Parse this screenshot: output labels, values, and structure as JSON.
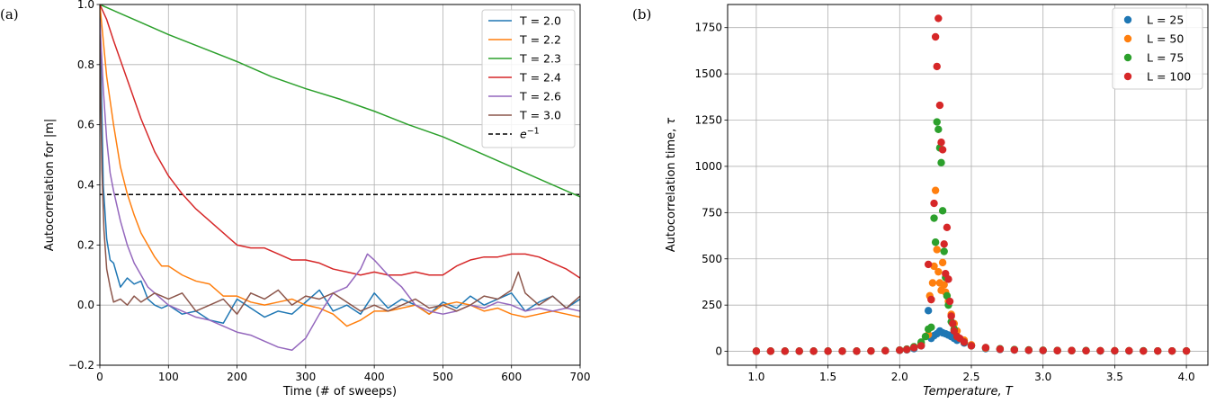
{
  "panels": {
    "a": "(a)",
    "b": "(b)"
  },
  "chart_data": [
    {
      "type": "line",
      "xlabel": "Time (# of sweeps)",
      "ylabel": "Autocorrelation for |m|",
      "xlim": [
        0,
        700
      ],
      "ylim": [
        -0.2,
        1.0
      ],
      "xticks": [
        "0",
        "100",
        "200",
        "300",
        "400",
        "500",
        "600",
        "700"
      ],
      "yticks": [
        "−0.2",
        "0.0",
        "0.2",
        "0.4",
        "0.6",
        "0.8",
        "1.0"
      ],
      "grid": true,
      "legend": "top-right",
      "reference_line": {
        "name_base": "e",
        "name_exp": "−1",
        "y": 0.368,
        "color": "#000000",
        "style": "dashed"
      },
      "series": [
        {
          "name": "T = 2.0",
          "color": "#1f77b4",
          "x": [
            0,
            5,
            10,
            15,
            20,
            30,
            40,
            50,
            60,
            70,
            80,
            90,
            100,
            120,
            140,
            160,
            180,
            200,
            220,
            240,
            260,
            280,
            300,
            320,
            340,
            360,
            380,
            400,
            420,
            440,
            460,
            480,
            500,
            520,
            540,
            560,
            580,
            600,
            620,
            640,
            660,
            680,
            700
          ],
          "y": [
            1.0,
            0.4,
            0.22,
            0.15,
            0.14,
            0.06,
            0.09,
            0.07,
            0.08,
            0.02,
            0.0,
            -0.01,
            0.0,
            -0.03,
            -0.02,
            -0.05,
            -0.06,
            0.02,
            -0.01,
            -0.04,
            -0.02,
            -0.03,
            0.01,
            0.05,
            -0.02,
            0.0,
            -0.03,
            0.04,
            -0.01,
            0.02,
            0.0,
            -0.03,
            0.01,
            -0.01,
            0.03,
            0.0,
            0.02,
            0.04,
            -0.02,
            0.01,
            0.03,
            -0.01,
            0.02
          ]
        },
        {
          "name": "T = 2.2",
          "color": "#ff7f0e",
          "x": [
            0,
            10,
            20,
            30,
            40,
            50,
            60,
            70,
            80,
            90,
            100,
            120,
            140,
            160,
            180,
            200,
            220,
            240,
            260,
            280,
            300,
            320,
            340,
            360,
            380,
            400,
            420,
            440,
            460,
            480,
            500,
            520,
            540,
            560,
            580,
            600,
            620,
            640,
            660,
            680,
            700
          ],
          "y": [
            1.0,
            0.76,
            0.6,
            0.46,
            0.37,
            0.3,
            0.24,
            0.2,
            0.16,
            0.13,
            0.13,
            0.1,
            0.08,
            0.07,
            0.03,
            0.03,
            0.01,
            0.0,
            0.01,
            0.02,
            0.0,
            -0.01,
            -0.03,
            -0.07,
            -0.05,
            -0.02,
            -0.02,
            -0.01,
            0.0,
            -0.03,
            0.0,
            0.01,
            0.0,
            -0.02,
            -0.01,
            -0.03,
            -0.04,
            -0.03,
            -0.02,
            -0.03,
            -0.04
          ]
        },
        {
          "name": "T = 2.3",
          "color": "#2ca02c",
          "x": [
            0,
            50,
            100,
            150,
            200,
            250,
            300,
            350,
            400,
            450,
            500,
            550,
            600,
            650,
            700
          ],
          "y": [
            1.0,
            0.95,
            0.9,
            0.855,
            0.81,
            0.76,
            0.72,
            0.685,
            0.645,
            0.6,
            0.56,
            0.51,
            0.46,
            0.41,
            0.36
          ]
        },
        {
          "name": "T = 2.4",
          "color": "#d62728",
          "x": [
            0,
            10,
            20,
            40,
            60,
            80,
            100,
            120,
            140,
            160,
            180,
            200,
            220,
            240,
            260,
            280,
            300,
            320,
            340,
            360,
            380,
            400,
            420,
            440,
            460,
            480,
            500,
            520,
            540,
            560,
            580,
            600,
            620,
            640,
            660,
            680,
            700
          ],
          "y": [
            1.0,
            0.95,
            0.88,
            0.75,
            0.62,
            0.51,
            0.43,
            0.37,
            0.32,
            0.28,
            0.24,
            0.2,
            0.19,
            0.19,
            0.17,
            0.15,
            0.15,
            0.14,
            0.12,
            0.11,
            0.1,
            0.11,
            0.1,
            0.1,
            0.11,
            0.1,
            0.1,
            0.13,
            0.15,
            0.16,
            0.16,
            0.17,
            0.17,
            0.16,
            0.14,
            0.12,
            0.09
          ]
        },
        {
          "name": "T = 2.6",
          "color": "#9467bd",
          "x": [
            0,
            5,
            10,
            15,
            20,
            30,
            40,
            50,
            60,
            70,
            80,
            90,
            100,
            120,
            140,
            160,
            180,
            200,
            220,
            240,
            260,
            280,
            300,
            320,
            340,
            360,
            380,
            390,
            400,
            420,
            440,
            460,
            480,
            500,
            520,
            540,
            560,
            580,
            600,
            620,
            640,
            660,
            680,
            700
          ],
          "y": [
            0.95,
            0.72,
            0.55,
            0.44,
            0.38,
            0.28,
            0.2,
            0.14,
            0.1,
            0.06,
            0.04,
            0.02,
            0.0,
            -0.02,
            -0.04,
            -0.05,
            -0.07,
            -0.09,
            -0.1,
            -0.12,
            -0.14,
            -0.15,
            -0.11,
            -0.03,
            0.04,
            0.06,
            0.12,
            0.17,
            0.15,
            0.1,
            0.06,
            0.0,
            -0.02,
            -0.03,
            -0.02,
            0.0,
            -0.01,
            0.01,
            0.0,
            -0.02,
            -0.01,
            -0.02,
            -0.01,
            -0.02
          ]
        },
        {
          "name": "T = 3.0",
          "color": "#8c564b",
          "x": [
            0,
            3,
            6,
            10,
            15,
            20,
            30,
            40,
            50,
            60,
            80,
            100,
            120,
            140,
            160,
            180,
            200,
            220,
            240,
            260,
            280,
            300,
            320,
            340,
            360,
            380,
            400,
            420,
            440,
            460,
            480,
            500,
            520,
            540,
            560,
            580,
            600,
            610,
            620,
            640,
            660,
            680,
            700
          ],
          "y": [
            0.9,
            0.45,
            0.25,
            0.12,
            0.06,
            0.01,
            0.02,
            0.0,
            0.03,
            0.01,
            0.04,
            0.02,
            0.04,
            -0.02,
            0.0,
            0.02,
            -0.03,
            0.04,
            0.02,
            0.05,
            0.0,
            0.03,
            0.02,
            0.04,
            0.01,
            -0.02,
            0.0,
            -0.02,
            0.0,
            0.02,
            -0.01,
            0.0,
            -0.02,
            0.0,
            0.03,
            0.02,
            0.05,
            0.11,
            0.04,
            0.0,
            0.03,
            -0.01,
            0.03
          ]
        }
      ]
    },
    {
      "type": "scatter",
      "xlabel_base": "Temperature",
      "xlabel_var": "T",
      "ylabel_base": "Autocorrelation time,",
      "ylabel_var": "τ",
      "xlim": [
        0.8,
        4.15
      ],
      "ylim": [
        -75,
        1875
      ],
      "xticks": [
        "1.0",
        "1.5",
        "2.0",
        "2.5",
        "3.0",
        "3.5",
        "4.0"
      ],
      "yticks": [
        "0",
        "250",
        "500",
        "750",
        "1000",
        "1250",
        "1500",
        "1750"
      ],
      "grid": true,
      "legend": "top-right",
      "series": [
        {
          "name": "L = 25",
          "color": "#1f77b4",
          "x": [
            1.0,
            1.1,
            1.2,
            1.3,
            1.4,
            1.5,
            1.6,
            1.7,
            1.8,
            1.9,
            2.0,
            2.05,
            2.1,
            2.15,
            2.2,
            2.22,
            2.24,
            2.26,
            2.28,
            2.3,
            2.32,
            2.34,
            2.36,
            2.38,
            2.4,
            2.45,
            2.5,
            2.6,
            2.7,
            2.8,
            2.9,
            3.0,
            3.1,
            3.2,
            3.3,
            3.4,
            3.5,
            3.6,
            3.7,
            3.8,
            3.9,
            4.0
          ],
          "y": [
            1,
            1,
            1,
            1,
            1,
            1,
            1,
            1,
            2,
            3,
            5,
            8,
            15,
            30,
            220,
            70,
            85,
            95,
            110,
            100,
            95,
            88,
            80,
            70,
            60,
            45,
            30,
            15,
            10,
            7,
            5,
            4,
            3,
            3,
            3,
            2,
            2,
            2,
            2,
            2,
            2,
            2
          ]
        },
        {
          "name": "L = 50",
          "color": "#ff7f0e",
          "x": [
            1.0,
            1.1,
            1.2,
            1.3,
            1.4,
            1.5,
            1.6,
            1.7,
            1.8,
            1.9,
            2.0,
            2.05,
            2.1,
            2.15,
            2.2,
            2.21,
            2.22,
            2.23,
            2.24,
            2.25,
            2.26,
            2.27,
            2.28,
            2.29,
            2.3,
            2.31,
            2.32,
            2.33,
            2.34,
            2.36,
            2.38,
            2.4,
            2.45,
            2.5,
            2.6,
            2.7,
            2.8,
            2.9,
            3.0,
            3.1,
            3.2,
            3.3,
            3.4,
            3.5,
            3.6,
            3.7,
            3.8,
            3.9,
            4.0
          ],
          "y": [
            1,
            1,
            1,
            1,
            1,
            1,
            1,
            1,
            2,
            3,
            6,
            10,
            20,
            40,
            90,
            300,
            280,
            370,
            460,
            870,
            550,
            430,
            370,
            330,
            480,
            360,
            320,
            300,
            270,
            200,
            150,
            110,
            60,
            35,
            18,
            12,
            8,
            6,
            5,
            4,
            4,
            3,
            3,
            3,
            3,
            2,
            2,
            2,
            2
          ]
        },
        {
          "name": "L = 75",
          "color": "#2ca02c",
          "x": [
            1.0,
            1.1,
            1.2,
            1.3,
            1.4,
            1.5,
            1.6,
            1.7,
            1.8,
            1.9,
            2.0,
            2.05,
            2.1,
            2.15,
            2.18,
            2.2,
            2.22,
            2.24,
            2.25,
            2.26,
            2.27,
            2.28,
            2.29,
            2.3,
            2.31,
            2.32,
            2.33,
            2.34,
            2.36,
            2.38,
            2.4,
            2.45,
            2.5,
            2.6,
            2.7,
            2.8,
            2.9,
            3.0,
            3.1,
            3.2,
            3.3,
            3.4,
            3.5,
            3.6,
            3.7,
            3.8,
            3.9,
            4.0
          ],
          "y": [
            1,
            1,
            1,
            1,
            1,
            1,
            1,
            1,
            2,
            4,
            7,
            12,
            25,
            50,
            80,
            120,
            130,
            720,
            590,
            1240,
            1200,
            1100,
            1020,
            760,
            540,
            400,
            300,
            250,
            160,
            120,
            80,
            50,
            30,
            20,
            14,
            10,
            8,
            6,
            5,
            4,
            4,
            3,
            3,
            3,
            3,
            2,
            2,
            2
          ]
        },
        {
          "name": "L = 100",
          "color": "#d62728",
          "x": [
            1.0,
            1.1,
            1.2,
            1.3,
            1.4,
            1.5,
            1.6,
            1.7,
            1.8,
            1.9,
            2.0,
            2.05,
            2.1,
            2.15,
            2.2,
            2.22,
            2.24,
            2.25,
            2.26,
            2.27,
            2.28,
            2.29,
            2.3,
            2.31,
            2.32,
            2.33,
            2.34,
            2.35,
            2.36,
            2.37,
            2.38,
            2.4,
            2.42,
            2.45,
            2.5,
            2.6,
            2.7,
            2.8,
            2.9,
            3.0,
            3.1,
            3.2,
            3.3,
            3.4,
            3.5,
            3.6,
            3.7,
            3.8,
            3.9,
            4.0
          ],
          "y": [
            1,
            1,
            1,
            1,
            1,
            1,
            1,
            1,
            2,
            3,
            6,
            10,
            20,
            30,
            470,
            280,
            800,
            1700,
            1540,
            1800,
            1330,
            1130,
            1090,
            580,
            420,
            670,
            390,
            270,
            190,
            150,
            110,
            80,
            70,
            50,
            30,
            20,
            12,
            8,
            6,
            5,
            4,
            4,
            3,
            3,
            3,
            3,
            2,
            2,
            2,
            2
          ]
        }
      ]
    }
  ]
}
